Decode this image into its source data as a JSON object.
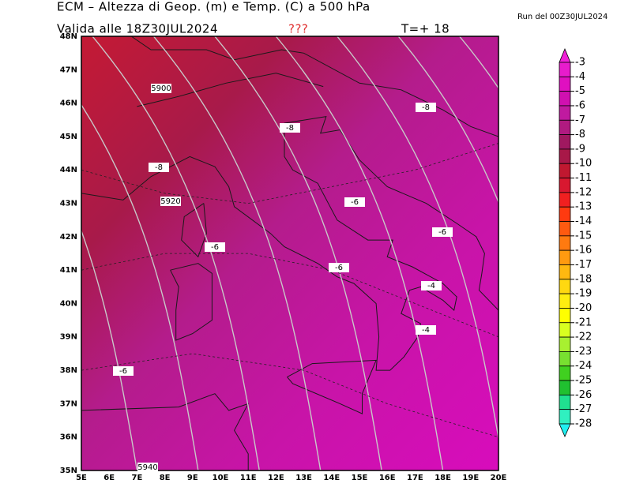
{
  "header": {
    "title": "ECM – Altezza di Geop. (m) e Temp. (C) a 500 hPa",
    "run": "Run del 00Z30JUL2024",
    "valid": "Valida alle 18Z30JUL2024",
    "flag": "???",
    "step": "T=+ 18"
  },
  "map": {
    "lat_labels": [
      "48N",
      "47N",
      "46N",
      "45N",
      "44N",
      "43N",
      "42N",
      "41N",
      "40N",
      "39N",
      "38N",
      "37N",
      "36N",
      "35N"
    ],
    "lon_labels": [
      "5E",
      "6E",
      "7E",
      "8E",
      "9E",
      "10E",
      "11E",
      "12E",
      "13E",
      "14E",
      "15E",
      "16E",
      "17E",
      "18E",
      "19E",
      "20E"
    ],
    "contour_labels": [
      "5900",
      "-8",
      "-8",
      "-8",
      "5920",
      "-6",
      "-6",
      "-6",
      "-6",
      "-4",
      "-4",
      "-6",
      "5940"
    ]
  },
  "colorbar": {
    "labels": [
      "-3",
      "-4",
      "-5",
      "-6",
      "-7",
      "-8",
      "-9",
      "-10",
      "-11",
      "-12",
      "-13",
      "-14",
      "-15",
      "-16",
      "-17",
      "-18",
      "-19",
      "-20",
      "-21",
      "-22",
      "-23",
      "-24",
      "-25",
      "-26",
      "-27",
      "-28"
    ],
    "colors": [
      "#f020d8",
      "#e81ccc",
      "#e010c0",
      "#d010b0",
      "#c01aa0",
      "#b01a80",
      "#a01860",
      "#a81848",
      "#c01830",
      "#d81830",
      "#f02020",
      "#ff3a10",
      "#ff5a10",
      "#ff7a10",
      "#ff9a10",
      "#ffb810",
      "#ffd810",
      "#ffee10",
      "#ffff00",
      "#d8ff20",
      "#a8f030",
      "#78e030",
      "#40d020",
      "#20c030",
      "#20e090",
      "#30f0c0",
      "#20f0f0"
    ]
  }
}
